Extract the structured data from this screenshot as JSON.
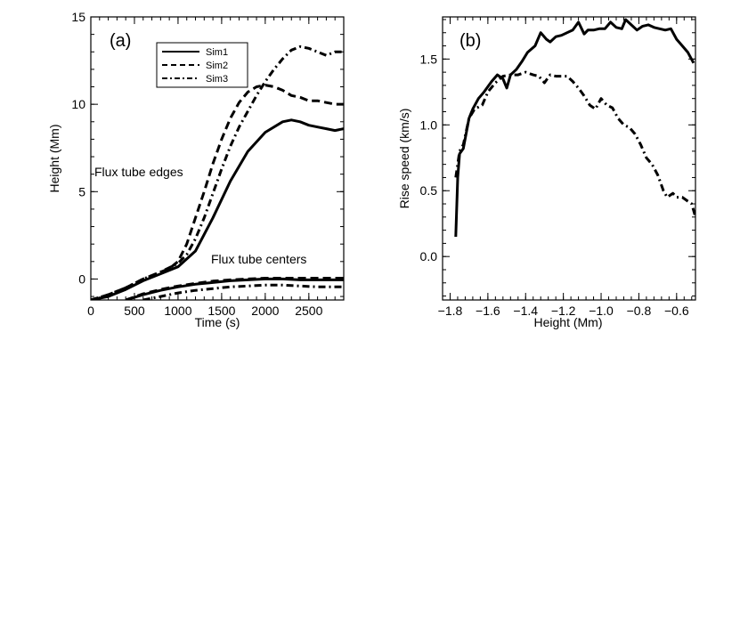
{
  "chart_data": [
    {
      "type": "line",
      "panel_label": "(a)",
      "xlabel": "Time (s)",
      "ylabel": "Height (Mm)",
      "xlim": [
        0,
        2900
      ],
      "ylim": [
        -1.2,
        15
      ],
      "xticks": [
        0,
        500,
        1000,
        1500,
        2000,
        2500
      ],
      "xtick_labels": [
        "0",
        "500",
        "1000",
        "1500",
        "2000",
        "2500"
      ],
      "yticks": [
        0,
        5,
        10,
        15
      ],
      "ytick_labels": [
        "0",
        "5",
        "10",
        "15"
      ],
      "grid": false,
      "legend": {
        "position": "top-center",
        "entries": [
          "Sim1",
          "Sim2",
          "Sim3"
        ]
      },
      "annotations": [
        {
          "text": "Flux tube edges",
          "x": 30,
          "y": 6.0
        },
        {
          "text": "Flux tube centers",
          "x": 1380,
          "y": 1.1
        }
      ],
      "series": [
        {
          "legend": "Sim1",
          "group": "edge",
          "style": "solid",
          "x": [
            0,
            200,
            400,
            600,
            800,
            1000,
            1200,
            1400,
            1600,
            1800,
            2000,
            2200,
            2300,
            2400,
            2500,
            2600,
            2700,
            2800,
            2900
          ],
          "y": [
            -1.2,
            -1.0,
            -0.6,
            -0.1,
            0.3,
            0.7,
            1.6,
            3.5,
            5.6,
            7.3,
            8.4,
            9.0,
            9.1,
            9.0,
            8.8,
            8.7,
            8.6,
            8.5,
            8.6
          ]
        },
        {
          "legend": "Sim2",
          "group": "edge",
          "style": "dashed",
          "x": [
            0,
            200,
            400,
            600,
            800,
            900,
            1000,
            1100,
            1200,
            1300,
            1400,
            1500,
            1600,
            1700,
            1800,
            1900,
            2000,
            2100,
            2200,
            2300,
            2400,
            2500,
            2600,
            2700,
            2800,
            2900
          ],
          "y": [
            -1.2,
            -0.9,
            -0.5,
            0.0,
            0.4,
            0.6,
            1.0,
            2.0,
            3.5,
            5.0,
            6.6,
            8.0,
            9.2,
            10.1,
            10.7,
            11.0,
            11.1,
            11.0,
            10.8,
            10.5,
            10.4,
            10.2,
            10.2,
            10.1,
            10.0,
            10.0
          ]
        },
        {
          "legend": "Sim3",
          "group": "edge",
          "style": "dashdot",
          "x": [
            0,
            200,
            400,
            600,
            800,
            1000,
            1100,
            1200,
            1300,
            1400,
            1500,
            1600,
            1700,
            1800,
            1900,
            2000,
            2100,
            2200,
            2300,
            2400,
            2500,
            2600,
            2700,
            2800,
            2900
          ],
          "y": [
            -1.2,
            -0.9,
            -0.5,
            0.0,
            0.4,
            0.9,
            1.4,
            2.3,
            3.5,
            4.9,
            6.3,
            7.6,
            8.7,
            9.6,
            10.5,
            11.3,
            12.0,
            12.6,
            13.1,
            13.3,
            13.2,
            13.0,
            12.8,
            13.0,
            13.0
          ]
        },
        {
          "legend": "Sim1",
          "group": "center",
          "style": "solid",
          "x": [
            400,
            600,
            800,
            1000,
            1200,
            1400,
            1600,
            1800,
            2000,
            2200,
            2400,
            2600,
            2800,
            2900
          ],
          "y": [
            -1.2,
            -0.9,
            -0.65,
            -0.45,
            -0.3,
            -0.2,
            -0.1,
            -0.05,
            0.0,
            0.0,
            -0.05,
            -0.05,
            -0.05,
            -0.05
          ]
        },
        {
          "legend": "Sim2",
          "group": "center",
          "style": "dashed",
          "x": [
            400,
            600,
            800,
            1000,
            1200,
            1400,
            1600,
            1800,
            2000,
            2200,
            2400,
            2600,
            2800,
            2900
          ],
          "y": [
            -1.2,
            -0.85,
            -0.6,
            -0.4,
            -0.25,
            -0.12,
            -0.05,
            0.0,
            0.05,
            0.05,
            0.05,
            0.05,
            0.05,
            0.05
          ]
        },
        {
          "legend": "Sim3",
          "group": "center",
          "style": "dashdot",
          "x": [
            600,
            800,
            1000,
            1200,
            1400,
            1600,
            1800,
            2000,
            2200,
            2400,
            2600,
            2800,
            2900
          ],
          "y": [
            -1.2,
            -1.0,
            -0.8,
            -0.65,
            -0.55,
            -0.45,
            -0.4,
            -0.35,
            -0.35,
            -0.4,
            -0.45,
            -0.45,
            -0.45
          ]
        }
      ]
    },
    {
      "type": "line",
      "panel_label": "(b)",
      "xlabel": "Height (Mm)",
      "ylabel": "Rise speed (km/s)",
      "xlim": [
        -1.84,
        -0.5
      ],
      "ylim": [
        -0.33,
        1.82
      ],
      "xticks": [
        -1.8,
        -1.6,
        -1.4,
        -1.2,
        -1.0,
        -0.8,
        -0.6
      ],
      "xtick_labels": [
        "−1.8",
        "−1.6",
        "−1.4",
        "−1.2",
        "−1.0",
        "−0.8",
        "−0.6"
      ],
      "yticks": [
        0.0,
        0.5,
        1.0,
        1.5
      ],
      "ytick_labels": [
        "0.0",
        "0.5",
        "1.0",
        "1.5"
      ],
      "grid": false,
      "series": [
        {
          "style": "solid",
          "x": [
            -1.77,
            -1.76,
            -1.75,
            -1.73,
            -1.7,
            -1.68,
            -1.65,
            -1.62,
            -1.58,
            -1.55,
            -1.52,
            -1.5,
            -1.48,
            -1.45,
            -1.42,
            -1.39,
            -1.35,
            -1.32,
            -1.29,
            -1.27,
            -1.24,
            -1.21,
            -1.18,
            -1.15,
            -1.12,
            -1.09,
            -1.07,
            -1.04,
            -1.01,
            -0.98,
            -0.95,
            -0.92,
            -0.89,
            -0.87,
            -0.84,
            -0.81,
            -0.78,
            -0.75,
            -0.72,
            -0.69,
            -0.66,
            -0.63,
            -0.6,
            -0.57,
            -0.54,
            -0.51
          ],
          "y": [
            0.15,
            0.6,
            0.78,
            0.82,
            1.05,
            1.12,
            1.2,
            1.25,
            1.33,
            1.38,
            1.35,
            1.28,
            1.38,
            1.42,
            1.48,
            1.55,
            1.6,
            1.7,
            1.65,
            1.63,
            1.67,
            1.68,
            1.7,
            1.72,
            1.78,
            1.69,
            1.72,
            1.72,
            1.73,
            1.73,
            1.78,
            1.74,
            1.73,
            1.8,
            1.76,
            1.72,
            1.75,
            1.76,
            1.74,
            1.73,
            1.72,
            1.73,
            1.65,
            1.6,
            1.55,
            1.47
          ]
        },
        {
          "style": "dashdot",
          "x": [
            -1.77,
            -1.75,
            -1.73,
            -1.7,
            -1.67,
            -1.63,
            -1.6,
            -1.56,
            -1.52,
            -1.48,
            -1.44,
            -1.4,
            -1.36,
            -1.33,
            -1.3,
            -1.27,
            -1.24,
            -1.21,
            -1.18,
            -1.15,
            -1.12,
            -1.09,
            -1.06,
            -1.03,
            -1.0,
            -0.97,
            -0.94,
            -0.91,
            -0.88,
            -0.85,
            -0.82,
            -0.79,
            -0.76,
            -0.73,
            -0.7,
            -0.67,
            -0.65,
            -0.62,
            -0.6,
            -0.57,
            -0.54,
            -0.52,
            -0.5
          ],
          "y": [
            0.6,
            0.8,
            0.85,
            1.05,
            1.12,
            1.15,
            1.25,
            1.32,
            1.37,
            1.38,
            1.38,
            1.4,
            1.38,
            1.37,
            1.32,
            1.38,
            1.37,
            1.37,
            1.37,
            1.33,
            1.28,
            1.22,
            1.15,
            1.12,
            1.2,
            1.15,
            1.13,
            1.05,
            1.0,
            0.98,
            0.93,
            0.85,
            0.75,
            0.7,
            0.62,
            0.5,
            0.45,
            0.48,
            0.45,
            0.45,
            0.42,
            0.4,
            0.3
          ]
        }
      ]
    }
  ]
}
